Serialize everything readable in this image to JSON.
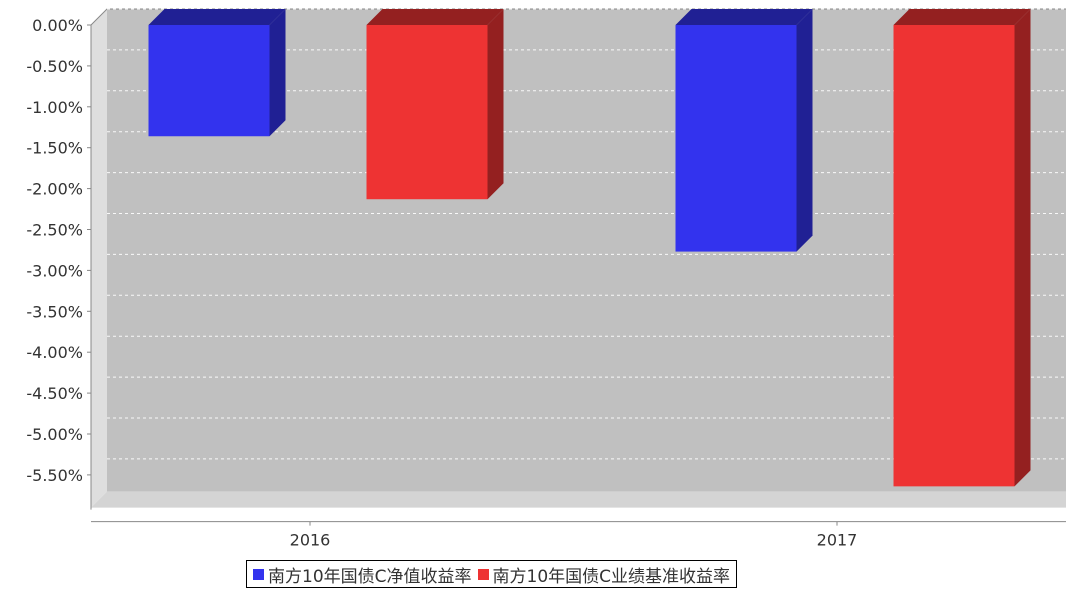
{
  "chart_data": {
    "type": "bar",
    "style": "3d",
    "title": "",
    "xlabel": "",
    "ylabel": "",
    "categories": [
      "2016",
      "2017"
    ],
    "series": [
      {
        "name": "南方10年国债C净值收益率",
        "values": [
          -1.36,
          -2.77
        ],
        "color": "#3333ee"
      },
      {
        "name": "南方10年国债C业绩基准收益率",
        "values": [
          -2.13,
          -5.64
        ],
        "color": "#ee3333"
      }
    ],
    "ylim": [
      -5.9,
      0
    ],
    "yticks": [
      0,
      -0.5,
      -1,
      -1.5,
      -2,
      -2.5,
      -3,
      -3.5,
      -4,
      -4.5,
      -5,
      -5.5
    ],
    "ytick_labels": [
      "0.00%",
      "-0.50%",
      "-1.00%",
      "-1.50%",
      "-2.00%",
      "-2.50%",
      "-3.00%",
      "-3.50%",
      "-4.00%",
      "-4.50%",
      "-5.00%",
      "-5.50%"
    ],
    "grid": true,
    "legend_position": "bottom-center",
    "plot_background": "#c0c0c0"
  }
}
